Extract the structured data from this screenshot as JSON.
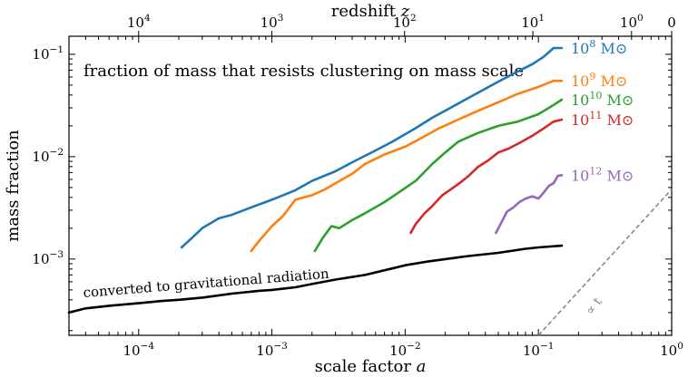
{
  "chart_data": {
    "type": "line",
    "title": "fraction of mass that resists clustering on mass scale",
    "xlabel": "scale factor a",
    "ylabel": "mass fraction",
    "top_xlabel": "redshift z",
    "x_scale": "log",
    "y_scale": "log",
    "xlim": [
      3e-05,
      1
    ],
    "ylim": [
      0.00018,
      0.15
    ],
    "x_ticks": [
      {
        "value": 0.0001,
        "base": "10",
        "exp": "−4"
      },
      {
        "value": 0.001,
        "base": "10",
        "exp": "−3"
      },
      {
        "value": 0.01,
        "base": "10",
        "exp": "−2"
      },
      {
        "value": 0.1,
        "base": "10",
        "exp": "−1"
      },
      {
        "value": 1,
        "base": "10",
        "exp": "0"
      }
    ],
    "y_ticks": [
      {
        "value": 0.001,
        "base": "10",
        "exp": "−3"
      },
      {
        "value": 0.01,
        "base": "10",
        "exp": "−2"
      },
      {
        "value": 0.1,
        "base": "10",
        "exp": "−1"
      }
    ],
    "top_ticks": [
      {
        "z": 10000,
        "base": "10",
        "exp": "4"
      },
      {
        "z": 1000,
        "base": "10",
        "exp": "3"
      },
      {
        "z": 100,
        "base": "10",
        "exp": "2"
      },
      {
        "z": 10,
        "base": "10",
        "exp": "1"
      },
      {
        "z": 1,
        "base": "10",
        "exp": "0"
      },
      {
        "z": 0,
        "text": "0"
      }
    ],
    "series": [
      {
        "name": "10^8 M⊙",
        "mantissa": "10",
        "exponent": "8",
        "unit": "M⊙",
        "color": "#1f77b4",
        "x": [
          0.00021,
          0.00025,
          0.0003,
          0.0004,
          0.0005,
          0.0007,
          0.001,
          0.0015,
          0.002,
          0.003,
          0.004,
          0.006,
          0.008,
          0.012,
          0.016,
          0.025,
          0.035,
          0.05,
          0.07,
          0.09,
          0.11,
          0.13,
          0.15
        ],
        "y": [
          0.0013,
          0.0016,
          0.002,
          0.0025,
          0.0027,
          0.0032,
          0.0038,
          0.0047,
          0.0058,
          0.0072,
          0.0088,
          0.0115,
          0.014,
          0.019,
          0.024,
          0.033,
          0.042,
          0.054,
          0.068,
          0.08,
          0.095,
          0.115,
          0.115
        ]
      },
      {
        "name": "10^9 M⊙",
        "mantissa": "10",
        "exponent": "9",
        "unit": "M⊙",
        "color": "#ff7f0e",
        "x": [
          0.0007,
          0.0008,
          0.001,
          0.0012,
          0.0015,
          0.002,
          0.0025,
          0.003,
          0.004,
          0.005,
          0.007,
          0.01,
          0.013,
          0.018,
          0.025,
          0.035,
          0.05,
          0.07,
          0.1,
          0.13,
          0.15
        ],
        "y": [
          0.0012,
          0.0015,
          0.0021,
          0.0026,
          0.0038,
          0.0042,
          0.0048,
          0.0055,
          0.0068,
          0.0085,
          0.0105,
          0.0125,
          0.015,
          0.019,
          0.023,
          0.028,
          0.034,
          0.041,
          0.048,
          0.055,
          0.055
        ]
      },
      {
        "name": "10^10 M⊙",
        "mantissa": "10",
        "exponent": "10",
        "unit": "M⊙",
        "color": "#2ca02c",
        "x": [
          0.0021,
          0.0024,
          0.0028,
          0.0032,
          0.004,
          0.005,
          0.007,
          0.009,
          0.012,
          0.016,
          0.02,
          0.025,
          0.035,
          0.05,
          0.07,
          0.1,
          0.13,
          0.15
        ],
        "y": [
          0.0012,
          0.0016,
          0.0021,
          0.002,
          0.0024,
          0.0028,
          0.0036,
          0.0045,
          0.0058,
          0.0085,
          0.011,
          0.014,
          0.017,
          0.02,
          0.022,
          0.026,
          0.032,
          0.036
        ]
      },
      {
        "name": "10^11 M⊙",
        "mantissa": "10",
        "exponent": "11",
        "unit": "M⊙",
        "color": "#d62728",
        "x": [
          0.011,
          0.012,
          0.014,
          0.016,
          0.019,
          0.022,
          0.026,
          0.03,
          0.035,
          0.042,
          0.05,
          0.06,
          0.075,
          0.09,
          0.11,
          0.13,
          0.15
        ],
        "y": [
          0.0018,
          0.0022,
          0.0028,
          0.0033,
          0.0042,
          0.0048,
          0.0056,
          0.0065,
          0.0079,
          0.0092,
          0.011,
          0.012,
          0.014,
          0.016,
          0.019,
          0.022,
          0.023
        ]
      },
      {
        "name": "10^12 M⊙",
        "mantissa": "10",
        "exponent": "12",
        "unit": "M⊙",
        "color": "#9467bd",
        "x": [
          0.048,
          0.052,
          0.058,
          0.065,
          0.072,
          0.08,
          0.09,
          0.1,
          0.11,
          0.12,
          0.13,
          0.14,
          0.15
        ],
        "y": [
          0.0018,
          0.0022,
          0.0029,
          0.0032,
          0.0036,
          0.0039,
          0.0041,
          0.0039,
          0.0045,
          0.0052,
          0.0055,
          0.0065,
          0.0066
        ]
      },
      {
        "name": "converted to gravitational radiation",
        "color": "#000000",
        "x": [
          3e-05,
          4e-05,
          6e-05,
          0.0001,
          0.00015,
          0.0002,
          0.0003,
          0.0005,
          0.0008,
          0.001,
          0.0015,
          0.002,
          0.003,
          0.005,
          0.008,
          0.01,
          0.015,
          0.02,
          0.03,
          0.05,
          0.08,
          0.1,
          0.15
        ],
        "y": [
          0.0003,
          0.00033,
          0.00035,
          0.00037,
          0.00039,
          0.0004,
          0.00042,
          0.00046,
          0.00049,
          0.0005,
          0.00053,
          0.00057,
          0.00063,
          0.0007,
          0.00081,
          0.00087,
          0.00095,
          0.001,
          0.00107,
          0.00115,
          0.00126,
          0.0013,
          0.00135
        ]
      }
    ],
    "reference_line": {
      "label": "∝ t",
      "x_start": 0.1,
      "x_end": 1.0,
      "y_start": 0.00018,
      "y_end": 0.0048,
      "color": "#888888",
      "style": "dashed"
    },
    "annotation": "converted to gravitational radiation",
    "grid": false
  }
}
